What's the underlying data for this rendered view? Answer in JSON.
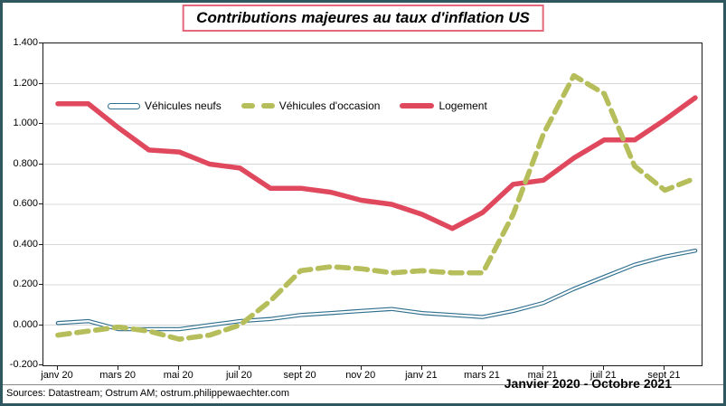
{
  "title": {
    "text": "Contributions majeures au taux d'inflation US",
    "border_color": "#E5697B"
  },
  "annotation": "Janvier 2020 - Octobre 2021",
  "footer": {
    "sources": "Sources: Datastream; Ostrum AM; ostrum.philippewaechter.com"
  },
  "frame": {
    "outer_border_color": "#2F5760",
    "plot_border_color": "#1a1a1a",
    "grid_color": "#D8D8D8",
    "background": "#ffffff"
  },
  "chart_data": {
    "type": "line",
    "title": "Contributions majeures au taux d'inflation US",
    "x": [
      "janv 20",
      "févr 20",
      "mars 20",
      "avr 20",
      "mai 20",
      "juin 20",
      "juil 20",
      "août 20",
      "sept 20",
      "oct 20",
      "nov 20",
      "déc 20",
      "janv 21",
      "févr 21",
      "mars 21",
      "avr 21",
      "mai 21",
      "juin 21",
      "juil 21",
      "août 21",
      "sept 21",
      "oct 21"
    ],
    "x_tick_labels": [
      "janv 20",
      "mars 20",
      "mai 20",
      "juil 20",
      "sept 20",
      "nov 20",
      "janv 21",
      "mars 21",
      "mai 21",
      "juil 21",
      "sept 21"
    ],
    "y_ticks": [
      1.4,
      1.2,
      1.0,
      0.8,
      0.6,
      0.4,
      0.2,
      0.0,
      -0.2
    ],
    "ylim": [
      -0.2,
      1.4
    ],
    "grid": true,
    "legend_position": "top-left-inside",
    "series": [
      {
        "name": "Véhicules neufs",
        "style": "double",
        "color": "#2E6F8E",
        "values": [
          0.01,
          0.02,
          -0.02,
          -0.02,
          -0.02,
          0.0,
          0.02,
          0.03,
          0.05,
          0.06,
          0.07,
          0.08,
          0.06,
          0.05,
          0.04,
          0.07,
          0.11,
          0.18,
          0.24,
          0.3,
          0.34,
          0.37
        ]
      },
      {
        "name": "Véhicules d'occasion",
        "style": "dashed",
        "color": "#B6BE5B",
        "values": [
          -0.05,
          -0.03,
          -0.01,
          -0.03,
          -0.07,
          -0.05,
          0.0,
          0.12,
          0.27,
          0.29,
          0.28,
          0.26,
          0.27,
          0.26,
          0.26,
          0.55,
          0.95,
          1.24,
          1.15,
          0.79,
          0.67,
          0.73
        ]
      },
      {
        "name": "Logement",
        "style": "solid",
        "color": "#E0485E",
        "values": [
          1.1,
          1.1,
          0.98,
          0.87,
          0.86,
          0.8,
          0.78,
          0.68,
          0.68,
          0.66,
          0.62,
          0.6,
          0.55,
          0.48,
          0.56,
          0.7,
          0.72,
          0.83,
          0.92,
          0.92,
          1.02,
          1.13
        ]
      }
    ]
  }
}
